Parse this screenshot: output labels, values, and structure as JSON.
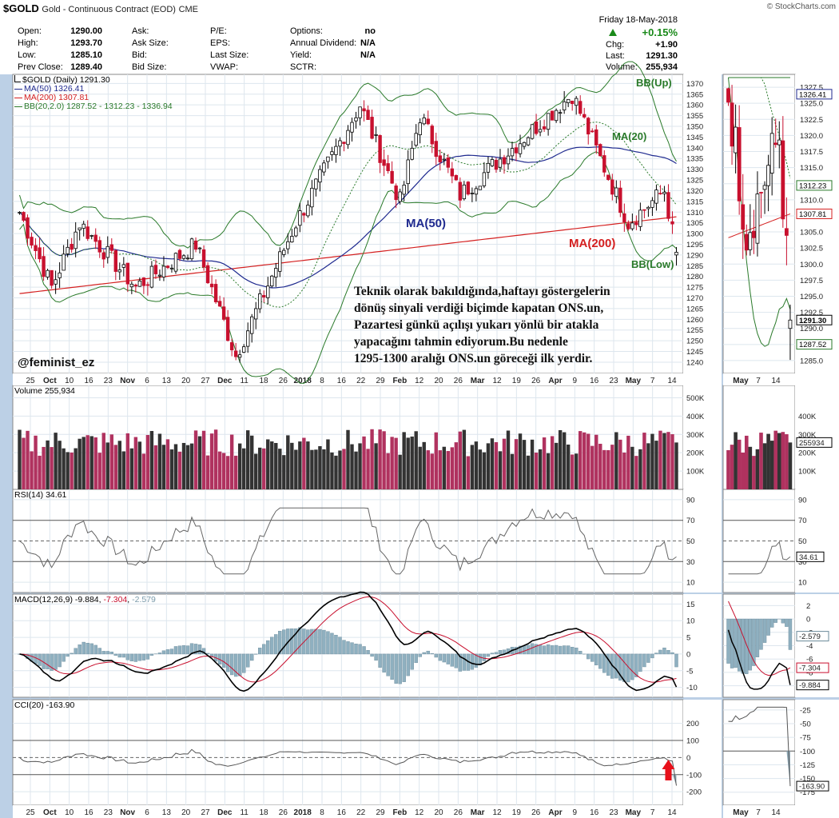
{
  "header": {
    "symbol": "$GOLD",
    "description": "Gold - Continuous Contract (EOD)",
    "exchange": "CME",
    "watermark": "© StockCharts.com",
    "quote_left": [
      {
        "label": "Open:",
        "value": "1290.00"
      },
      {
        "label": "High:",
        "value": "1293.70"
      },
      {
        "label": "Low:",
        "value": "1285.10"
      },
      {
        "label": "Prev Close:",
        "value": "1289.40"
      }
    ],
    "quote_mid": [
      {
        "label": "Ask:",
        "value": ""
      },
      {
        "label": "Ask Size:",
        "value": ""
      },
      {
        "label": "Bid:",
        "value": ""
      },
      {
        "label": "Bid Size:",
        "value": ""
      }
    ],
    "quote_mid2": [
      {
        "label": "P/E:",
        "value": ""
      },
      {
        "label": "EPS:",
        "value": ""
      },
      {
        "label": "Last Size:",
        "value": ""
      },
      {
        "label": "VWAP:",
        "value": ""
      }
    ],
    "quote_right": [
      {
        "label": "Options:",
        "value": "no"
      },
      {
        "label": "Annual Dividend:",
        "value": "N/A"
      },
      {
        "label": "Yield:",
        "value": "N/A"
      },
      {
        "label": "SCTR:",
        "value": ""
      }
    ],
    "date": "Friday  18-May-2018",
    "change_pct": "+0.15%",
    "chg_label": "Chg:",
    "chg_value": "+1.90",
    "last_label": "Last:",
    "last_value": "1291.30",
    "volume_label": "Volume:",
    "volume_value": "255,934"
  },
  "legends": {
    "price_main": "$GOLD (Daily) 1291.30",
    "ma50": "MA(50) 1326.41",
    "ma200": "MA(200) 1307.81",
    "bb": "BB(20,2.0) 1287.52 - 1312.23 - 1336.94",
    "volume": "Volume 255,934",
    "rsi": "RSI(14) 34.61",
    "macd_name": "MACD(12,26,9)",
    "macd_v1": "-9.884",
    "macd_v2": "-7.304",
    "macd_v3": "-2.579",
    "cci": "CCI(20) -163.90"
  },
  "chart_labels": {
    "bb_up": "BB(Up)",
    "ma20": "MA(20)",
    "ma50": "MA(50)",
    "ma200": "MA(200)",
    "bb_low": "BB(Low)"
  },
  "annotation": {
    "author": "@feminist_ez",
    "lines": [
      "Teknik olarak bakıldığında,haftayı göstergelerin",
      "dönüş sinyali verdiği biçimde kapatan ONS.un,",
      "Pazartesi günkü açılışı yukarı yönlü bir atakla",
      "yapacağını tahmin ediyorum.Bu nedenle",
      "1295-1300 aralığı ONS.un göreceği ilk yerdir."
    ]
  },
  "colors": {
    "up_candle": "#000000",
    "down_candle": "#c8102e",
    "bb": "#2a7a2a",
    "ma50": "#1f2a8f",
    "ma200": "#d42020",
    "vol_up": "#333333",
    "vol_down": "#b0325f",
    "macd_hist": "#8fb0c0",
    "cci_fill": "#90aab8"
  },
  "x_axis_labels": [
    "25",
    "Oct",
    "10",
    "16",
    "23",
    "Nov",
    "6",
    "13",
    "20",
    "27",
    "Dec",
    "11",
    "18",
    "26",
    "2018",
    "8",
    "16",
    "22",
    "29",
    "Feb",
    "12",
    "20",
    "26",
    "Mar",
    "12",
    "19",
    "26",
    "Apr",
    "9",
    "16",
    "23",
    "May",
    "7",
    "14"
  ],
  "zoom_x_axis_labels": [
    "May",
    "7",
    "14"
  ],
  "axes": {
    "price_ticks": [
      "1370",
      "1365",
      "1360",
      "1355",
      "1350",
      "1345",
      "1340",
      "1335",
      "1330",
      "1325",
      "1320",
      "1315",
      "1310",
      "1305",
      "1300",
      "1295",
      "1290",
      "1285",
      "1280",
      "1275",
      "1270",
      "1265",
      "1260",
      "1255",
      "1250",
      "1245",
      "1240"
    ],
    "zoom_price_ticks": [
      "1327.5",
      "1325.0",
      "1322.5",
      "1320.0",
      "1317.5",
      "1315.0",
      "1312.5",
      "1310.0",
      "1307.5",
      "1305.0",
      "1302.5",
      "1300.0",
      "1297.5",
      "1295.0",
      "1292.5",
      "1290.0",
      "1287.5",
      "1285.0"
    ],
    "zoom_price_tags": [
      "1326.41",
      "1312.23",
      "1307.81",
      "1291.30",
      "1287.52"
    ],
    "volume_ticks": [
      "500K",
      "400K",
      "300K",
      "200K",
      "100K"
    ],
    "zoom_volume_ticks": [
      "400K",
      "300K",
      "200K",
      "100K"
    ],
    "volume_tag": "255934",
    "rsi_ticks": [
      "90",
      "70",
      "50",
      "30",
      "10"
    ],
    "rsi_tag": "34.61",
    "macd_ticks": [
      "15",
      "10",
      "5",
      "0",
      "-5",
      "-10"
    ],
    "zoom_macd_ticks": [
      "2",
      "0",
      "-2",
      "-4",
      "-6",
      "-8",
      "-10"
    ],
    "macd_tags": [
      "-2.579",
      "-7.304",
      "-9.884"
    ],
    "cci_ticks": [
      "200",
      "100",
      "0",
      "-100",
      "-200"
    ],
    "zoom_cci_ticks": [
      "-25",
      "-50",
      "-75",
      "-100",
      "-125",
      "-150",
      "-175"
    ],
    "cci_tag": "-163.90"
  },
  "chart_data": {
    "type": "candlestick",
    "ylim": [
      1237,
      1372
    ],
    "x": "trading days Sep 25, 2017 – May 18, 2018",
    "ohlc_checkpoints": [
      {
        "date": "2017-09-25",
        "close": 1310
      },
      {
        "date": "2017-10-06",
        "close": 1275
      },
      {
        "date": "2017-10-16",
        "close": 1305
      },
      {
        "date": "2017-11-06",
        "close": 1275
      },
      {
        "date": "2017-11-27",
        "close": 1295
      },
      {
        "date": "2017-12-12",
        "close": 1243
      },
      {
        "date": "2018-01-02",
        "close": 1305
      },
      {
        "date": "2018-01-25",
        "close": 1360
      },
      {
        "date": "2018-02-08",
        "close": 1315
      },
      {
        "date": "2018-02-16",
        "close": 1355
      },
      {
        "date": "2018-03-01",
        "close": 1318
      },
      {
        "date": "2018-04-11",
        "close": 1365
      },
      {
        "date": "2018-05-01",
        "close": 1305
      },
      {
        "date": "2018-05-14",
        "close": 1320
      },
      {
        "date": "2018-05-18",
        "close": 1291.3
      }
    ],
    "last": {
      "open": 1290.0,
      "high": 1293.7,
      "low": 1285.1,
      "close": 1291.3,
      "volume": 255934
    },
    "indicators": {
      "ma50": 1326.41,
      "ma200": 1307.81,
      "bb_lower": 1287.52,
      "bb_mid": 1312.23,
      "bb_upper": 1336.94,
      "rsi14": 34.61,
      "macd": -9.884,
      "macd_signal": -7.304,
      "macd_hist": -2.579,
      "cci20": -163.9
    },
    "volume_ylim": [
      0,
      550000
    ],
    "rsi_ylim": [
      0,
      100
    ],
    "macd_ylim": [
      -12,
      17
    ],
    "cci_ylim": [
      -260,
      320
    ]
  }
}
